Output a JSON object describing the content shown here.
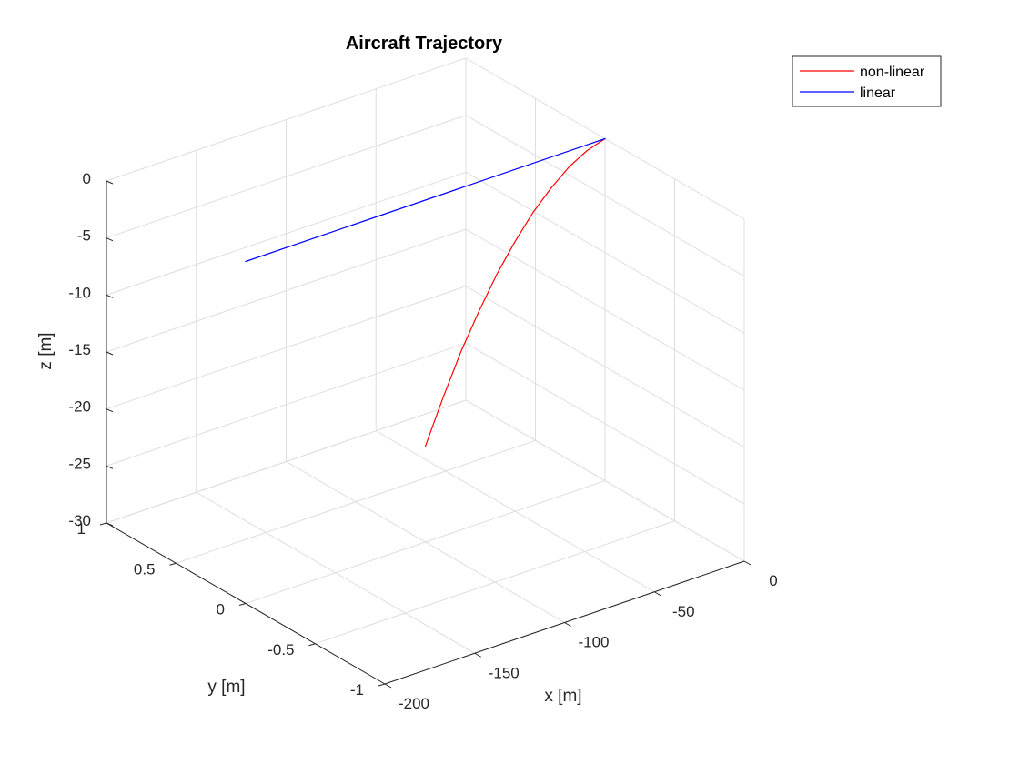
{
  "chart_data": {
    "type": "line",
    "title": "Aircraft Trajectory",
    "xlabel": "x [m]",
    "ylabel": "y [m]",
    "zlabel": "z [m]",
    "xlim": [
      -200,
      0
    ],
    "ylim": [
      -1,
      1
    ],
    "zlim": [
      -30,
      0
    ],
    "xticks": [
      -200,
      -150,
      -100,
      -50,
      0
    ],
    "yticks": [
      -1,
      -0.5,
      0,
      0.5,
      1
    ],
    "zticks": [
      -30,
      -25,
      -20,
      -15,
      -10,
      -5,
      0
    ],
    "grid": true,
    "legend_position": "top-right",
    "colors": {
      "non-linear": "#ff0000",
      "linear": "#0000ff"
    },
    "series": [
      {
        "name": "non-linear",
        "x": [
          0,
          -10,
          -20,
          -30,
          -40,
          -50,
          -60,
          -70,
          -80,
          -90,
          -100
        ],
        "y": [
          0,
          0,
          0,
          0,
          0,
          0,
          0,
          0,
          0,
          0,
          0
        ],
        "z": [
          0,
          -0.5,
          -1.4,
          -2.7,
          -4.3,
          -6.3,
          -8.6,
          -11.3,
          -14.3,
          -17.8,
          -21.6
        ]
      },
      {
        "name": "linear",
        "x": [
          0,
          -100,
          -200
        ],
        "y": [
          0,
          0,
          0
        ],
        "z": [
          0,
          0,
          0
        ]
      }
    ]
  }
}
